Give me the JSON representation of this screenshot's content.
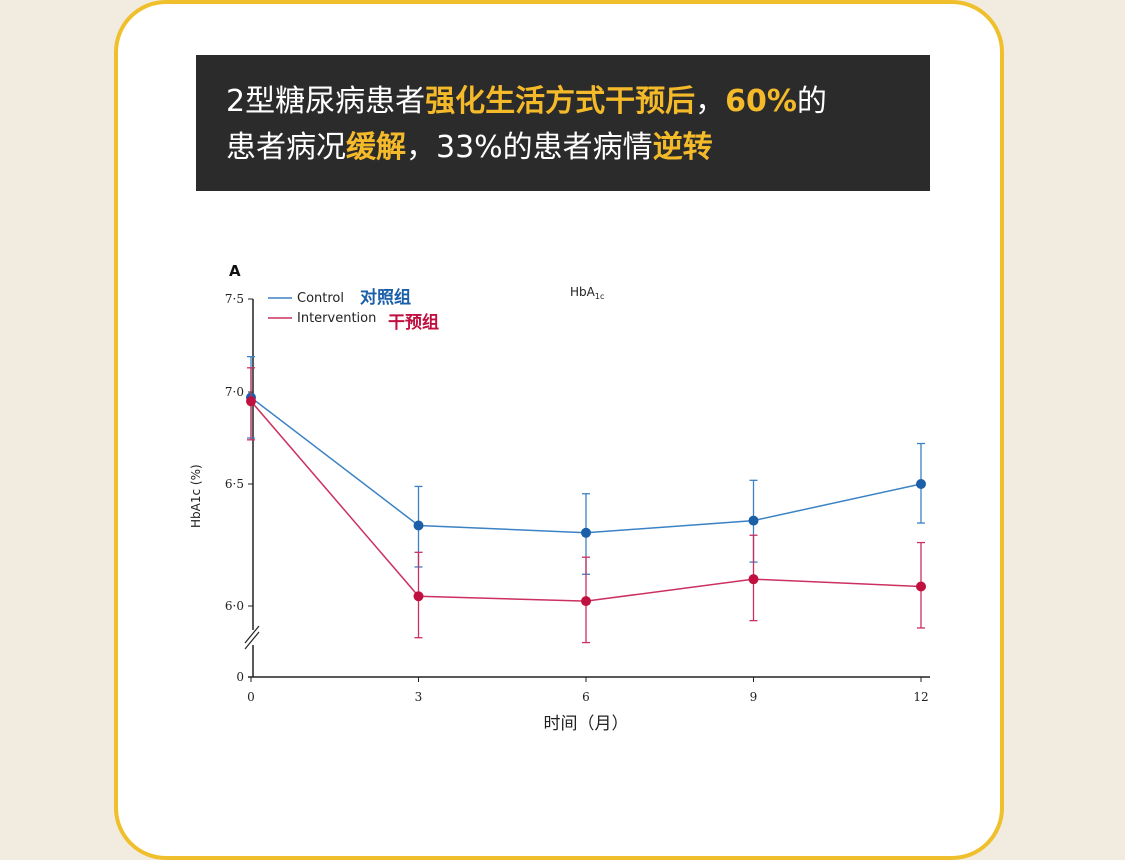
{
  "banner": {
    "line1": [
      {
        "text": "2型糖尿病患者",
        "highlight": false
      },
      {
        "text": "强化生活方式干预后",
        "highlight": true
      },
      {
        "text": "，",
        "highlight": false
      },
      {
        "text": "60%",
        "highlight": true
      },
      {
        "text": "的",
        "highlight": false
      }
    ],
    "line2": [
      {
        "text": "患者病况",
        "highlight": false
      },
      {
        "text": "缓解",
        "highlight": true
      },
      {
        "text": "，33%的患者病情",
        "highlight": false
      },
      {
        "text": "逆转",
        "highlight": true
      }
    ]
  },
  "colors": {
    "control": "#1a5fa8",
    "intervention": "#c0103f",
    "control_line": "#3b82c4",
    "intervention_line": "#cc3060"
  },
  "chart_data": {
    "type": "line",
    "panel_label": "A",
    "title": "HbA1c",
    "xlabel": "时间（月）",
    "ylabel": "HbA1c (%)",
    "x": [
      0,
      3,
      6,
      9,
      12
    ],
    "x_ticks": [
      "0",
      "3",
      "6",
      "9",
      "12"
    ],
    "y_ticks": [
      "0",
      "6·0",
      "6·5",
      "7·0",
      "7·5"
    ],
    "y_tick_values": [
      0,
      6.0,
      6.5,
      7.0,
      7.5
    ],
    "axis_break": true,
    "legend_placement": "top-left",
    "series": [
      {
        "name": "Control",
        "name_cn": "对照组",
        "values": [
          6.97,
          6.33,
          6.3,
          6.35,
          6.5
        ],
        "err_upper": [
          7.19,
          6.49,
          6.46,
          6.52,
          6.72
        ],
        "err_lower": [
          6.75,
          6.16,
          6.13,
          6.18,
          6.34
        ]
      },
      {
        "name": "Intervention",
        "name_cn": "干预组",
        "values": [
          6.95,
          6.04,
          6.02,
          6.11,
          6.08
        ],
        "err_upper": [
          7.13,
          6.22,
          6.2,
          6.29,
          6.26
        ],
        "err_lower": [
          6.74,
          5.87,
          5.85,
          5.94,
          5.91
        ]
      }
    ]
  }
}
